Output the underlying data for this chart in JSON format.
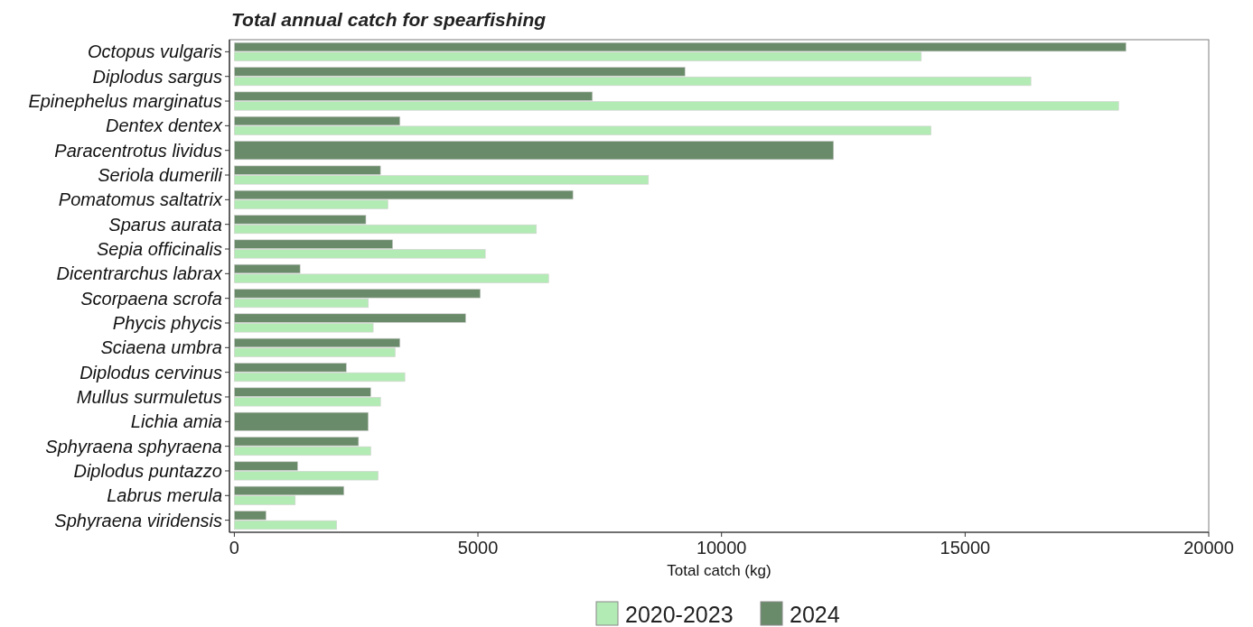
{
  "chart_data": {
    "type": "bar",
    "orientation": "horizontal",
    "title": "Total annual catch for spearfishing",
    "xlabel": "Total catch (kg)",
    "categories": [
      "Octopus vulgaris",
      "Diplodus sargus",
      "Epinephelus marginatus",
      "Dentex dentex",
      "Paracentrotus lividus",
      "Seriola dumerili",
      "Pomatomus saltatrix",
      "Sparus aurata",
      "Sepia officinalis",
      "Dicentrarchus labrax",
      "Scorpaena scrofa",
      "Phycis phycis",
      "Sciaena umbra",
      "Diplodus cervinus",
      "Mullus surmuletus",
      "Lichia amia",
      "Sphyraena sphyraena",
      "Diplodus puntazzo",
      "Labrus merula",
      "Sphyraena viridensis"
    ],
    "series": [
      {
        "name": "2020-2023",
        "color": "#b3ebb4",
        "values": [
          14100,
          16350,
          18150,
          14300,
          null,
          8500,
          3150,
          6200,
          5150,
          6450,
          2750,
          2850,
          3300,
          3500,
          3000,
          null,
          2800,
          2950,
          1250,
          2100
        ]
      },
      {
        "name": "2024",
        "color": "#6a8b6a",
        "values": [
          18300,
          9250,
          7350,
          3400,
          12300,
          3000,
          6950,
          2700,
          3250,
          1350,
          5050,
          4750,
          3400,
          2300,
          2800,
          2750,
          2550,
          1300,
          2250,
          650
        ]
      }
    ],
    "xlim": [
      -100,
      20000
    ],
    "xticks": [
      0,
      5000,
      10000,
      15000,
      20000
    ],
    "grid": false,
    "legend": "bottom"
  }
}
